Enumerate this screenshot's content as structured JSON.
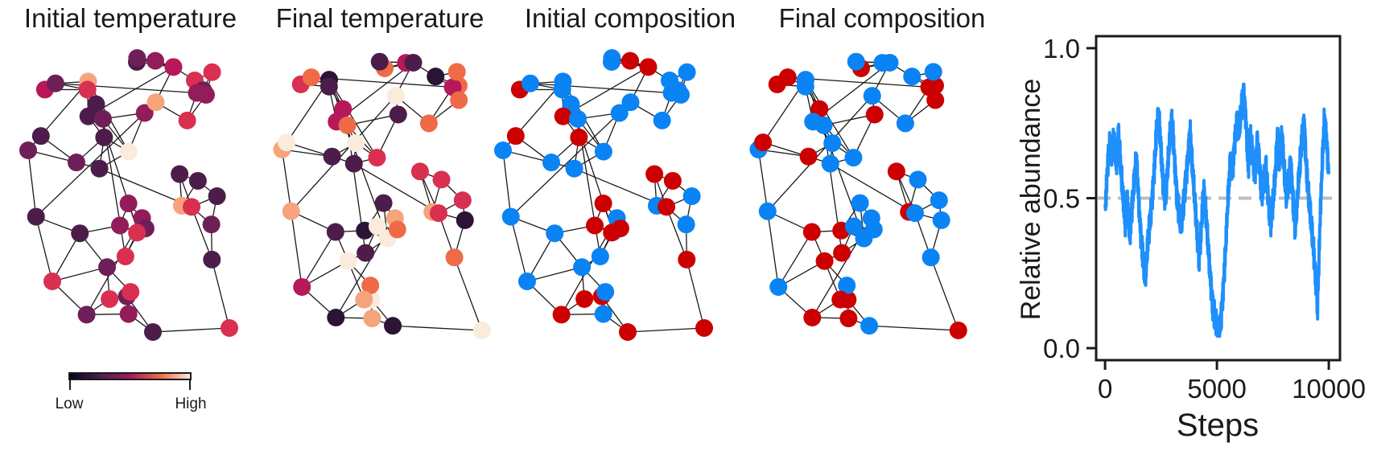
{
  "chart_data": [
    {
      "type": "network",
      "title": "Initial temperature",
      "node_coloring": "temperature",
      "state": "initial"
    },
    {
      "type": "network",
      "title": "Final temperature",
      "node_coloring": "temperature",
      "state": "final"
    },
    {
      "type": "network",
      "title": "Initial composition",
      "node_coloring": "composition",
      "state": "initial"
    },
    {
      "type": "network",
      "title": "Final composition",
      "node_coloring": "composition",
      "state": "final"
    },
    {
      "type": "line",
      "title": "",
      "xlabel": "Steps",
      "ylabel": "Relative abundance",
      "xlim": [
        -400,
        10500
      ],
      "ylim": [
        -0.04,
        1.04
      ],
      "xticks": [
        0,
        5000,
        10000
      ],
      "yticks": [
        0.0,
        0.5,
        1.0
      ],
      "xtick_labels": [
        "0",
        "5000",
        "10000"
      ],
      "ytick_labels": [
        "0.0",
        "0.5",
        "1.0"
      ],
      "grid": false,
      "reference_line": {
        "y": 0.5,
        "style": "dashed",
        "color": "#bdbdbd"
      },
      "series": [
        {
          "color": "#1e8ffb",
          "x": [
            0,
            100,
            200,
            300,
            400,
            500,
            600,
            700,
            800,
            900,
            1000,
            1100,
            1200,
            1300,
            1400,
            1500,
            1600,
            1700,
            1800,
            1900,
            2000,
            2100,
            2200,
            2300,
            2400,
            2500,
            2600,
            2700,
            2800,
            2900,
            3000,
            3100,
            3200,
            3300,
            3400,
            3500,
            3600,
            3700,
            3800,
            3900,
            4000,
            4100,
            4200,
            4300,
            4400,
            4500,
            4600,
            4700,
            4800,
            4900,
            5000,
            5100,
            5200,
            5300,
            5400,
            5500,
            5600,
            5700,
            5800,
            5900,
            6000,
            6100,
            6200,
            6300,
            6400,
            6500,
            6600,
            6700,
            6800,
            6900,
            7000,
            7100,
            7200,
            7300,
            7400,
            7500,
            7600,
            7700,
            7800,
            7900,
            8000,
            8100,
            8200,
            8300,
            8400,
            8500,
            8600,
            8700,
            8800,
            8900,
            9000,
            9100,
            9200,
            9300,
            9400,
            9500,
            9600,
            9700,
            9800,
            9900,
            10000
          ],
          "y": [
            0.45,
            0.6,
            0.67,
            0.64,
            0.7,
            0.62,
            0.72,
            0.6,
            0.5,
            0.42,
            0.5,
            0.38,
            0.46,
            0.55,
            0.63,
            0.5,
            0.38,
            0.3,
            0.22,
            0.34,
            0.42,
            0.5,
            0.6,
            0.72,
            0.77,
            0.66,
            0.55,
            0.5,
            0.6,
            0.7,
            0.76,
            0.64,
            0.52,
            0.45,
            0.4,
            0.47,
            0.56,
            0.64,
            0.72,
            0.6,
            0.5,
            0.4,
            0.3,
            0.4,
            0.52,
            0.45,
            0.35,
            0.25,
            0.15,
            0.1,
            0.06,
            0.05,
            0.12,
            0.22,
            0.35,
            0.5,
            0.62,
            0.6,
            0.7,
            0.75,
            0.72,
            0.8,
            0.86,
            0.76,
            0.6,
            0.7,
            0.63,
            0.58,
            0.7,
            0.62,
            0.5,
            0.55,
            0.6,
            0.5,
            0.42,
            0.48,
            0.56,
            0.7,
            0.64,
            0.72,
            0.6,
            0.5,
            0.55,
            0.62,
            0.5,
            0.4,
            0.5,
            0.6,
            0.7,
            0.76,
            0.6,
            0.5,
            0.42,
            0.35,
            0.25,
            0.14,
            0.4,
            0.6,
            0.76,
            0.7,
            0.58
          ]
        }
      ]
    }
  ],
  "colorbar": {
    "low_label": "Low",
    "high_label": "High"
  }
}
